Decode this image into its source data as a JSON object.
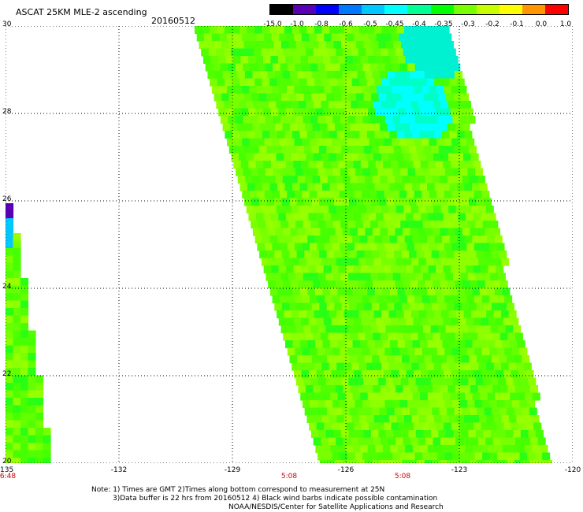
{
  "header": {
    "title": "ASCAT 25KM MLE-2 ascending",
    "date": "20160512"
  },
  "colorbar": {
    "labels": [
      "-15.0",
      "-1.0",
      "-0.8",
      "-0.6",
      "-0.5",
      "-0.45",
      "-0.4",
      "-0.35",
      "-0.3",
      "-0.2",
      "-0.1",
      "0.0",
      "1.0"
    ],
    "colors": [
      "#000000",
      "#5a00b4",
      "#0000ff",
      "#0078ff",
      "#00c8ff",
      "#00ffff",
      "#00ff96",
      "#00ff00",
      "#78ff00",
      "#c8ff00",
      "#ffff00",
      "#ff9600",
      "#ff0000"
    ]
  },
  "map": {
    "lon_range": [
      -135,
      -120
    ],
    "lat_range": [
      20,
      30
    ],
    "x_ticks": [
      "-135",
      "-132",
      "-129",
      "-126",
      "-123",
      "-120"
    ],
    "y_ticks": [
      "30",
      "28",
      "26",
      "24",
      "22",
      "20"
    ],
    "grid": "dotted",
    "swaths": [
      {
        "name": "west",
        "time": "6:48",
        "time_lon": -135
      },
      {
        "name": "east",
        "time": "5:08",
        "time_lon": -127.5
      },
      {
        "name": "east2",
        "time": "5:08",
        "time_lon": -124.5
      }
    ]
  },
  "notes": {
    "line1": "Note: 1) Times are GMT 2)Times along bottom correspond to measurement at 25N",
    "line2": "3)Data buffer is 22 hrs from 20160512 4) Black wind barbs indicate possible contamination",
    "line3": "NOAA/NESDIS/Center for Satellite Applications and Research"
  }
}
